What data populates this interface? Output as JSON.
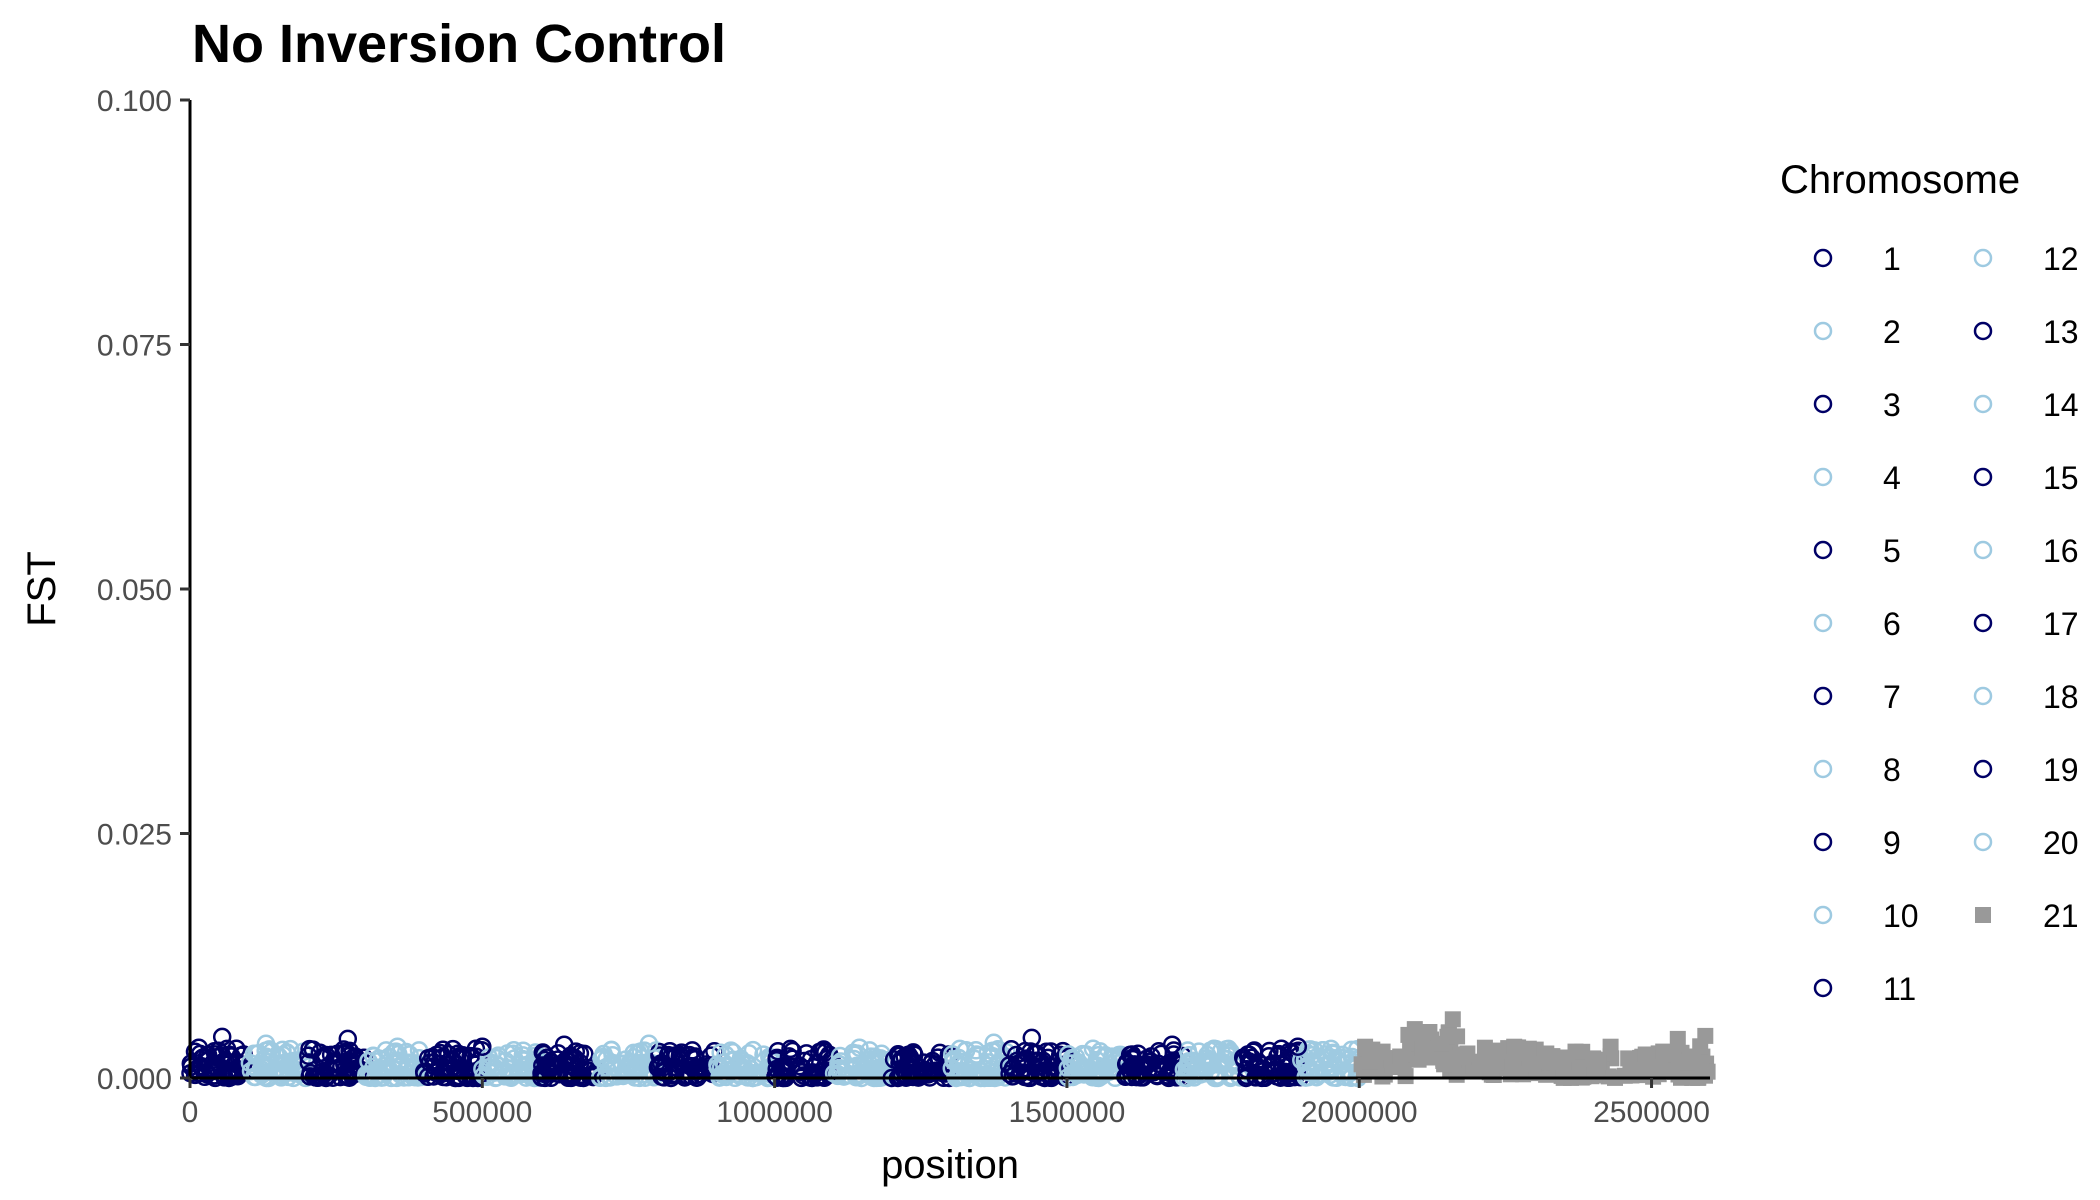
{
  "chart_data": {
    "type": "scatter",
    "title": "No Inversion Control",
    "xlabel": "position",
    "ylabel": "FST",
    "xlim": [
      0,
      2600000
    ],
    "ylim": [
      0,
      0.1
    ],
    "x_ticks": [
      0,
      500000,
      1000000,
      1500000,
      2000000,
      2500000
    ],
    "x_tick_labels": [
      "0",
      "500000",
      "1000000",
      "1500000",
      "2000000",
      "2500000"
    ],
    "y_ticks": [
      0,
      0.025,
      0.05,
      0.075,
      0.1
    ],
    "y_tick_labels": [
      "0.000",
      "0.025",
      "0.050",
      "0.075",
      "0.100"
    ],
    "grid": false,
    "legend": {
      "title": "Chromosome",
      "placement": "right",
      "columns": 2
    },
    "colors": {
      "dark": "#000066",
      "light": "#9ecae1",
      "gray": "#999999"
    },
    "series": [
      {
        "name": "1",
        "shape": "circle",
        "color": "#000066",
        "x_range": [
          0,
          100000
        ]
      },
      {
        "name": "2",
        "shape": "circle",
        "color": "#9ecae1",
        "x_range": [
          100000,
          200000
        ]
      },
      {
        "name": "3",
        "shape": "circle",
        "color": "#000066",
        "x_range": [
          200000,
          300000
        ]
      },
      {
        "name": "4",
        "shape": "circle",
        "color": "#9ecae1",
        "x_range": [
          300000,
          400000
        ]
      },
      {
        "name": "5",
        "shape": "circle",
        "color": "#000066",
        "x_range": [
          400000,
          500000
        ]
      },
      {
        "name": "6",
        "shape": "circle",
        "color": "#9ecae1",
        "x_range": [
          500000,
          600000
        ]
      },
      {
        "name": "7",
        "shape": "circle",
        "color": "#000066",
        "x_range": [
          600000,
          700000
        ]
      },
      {
        "name": "8",
        "shape": "circle",
        "color": "#9ecae1",
        "x_range": [
          700000,
          800000
        ]
      },
      {
        "name": "9",
        "shape": "circle",
        "color": "#000066",
        "x_range": [
          800000,
          900000
        ]
      },
      {
        "name": "10",
        "shape": "circle",
        "color": "#9ecae1",
        "x_range": [
          900000,
          1000000
        ]
      },
      {
        "name": "11",
        "shape": "circle",
        "color": "#000066",
        "x_range": [
          1000000,
          1100000
        ]
      },
      {
        "name": "12",
        "shape": "circle",
        "color": "#9ecae1",
        "x_range": [
          1100000,
          1200000
        ]
      },
      {
        "name": "13",
        "shape": "circle",
        "color": "#000066",
        "x_range": [
          1200000,
          1300000
        ]
      },
      {
        "name": "14",
        "shape": "circle",
        "color": "#9ecae1",
        "x_range": [
          1300000,
          1400000
        ]
      },
      {
        "name": "15",
        "shape": "circle",
        "color": "#000066",
        "x_range": [
          1400000,
          1500000
        ]
      },
      {
        "name": "16",
        "shape": "circle",
        "color": "#9ecae1",
        "x_range": [
          1500000,
          1600000
        ]
      },
      {
        "name": "17",
        "shape": "circle",
        "color": "#000066",
        "x_range": [
          1600000,
          1700000
        ]
      },
      {
        "name": "18",
        "shape": "circle",
        "color": "#9ecae1",
        "x_range": [
          1700000,
          1800000
        ]
      },
      {
        "name": "19",
        "shape": "circle",
        "color": "#000066",
        "x_range": [
          1800000,
          1900000
        ]
      },
      {
        "name": "20",
        "shape": "circle",
        "color": "#9ecae1",
        "x_range": [
          1900000,
          2000000
        ]
      },
      {
        "name": "21",
        "shape": "square",
        "color": "#999999",
        "x_range": [
          2000000,
          2600000
        ]
      }
    ],
    "points_per_series": 60,
    "typical_fst_range": [
      0,
      0.003
    ],
    "peak_points": [
      {
        "series": "1",
        "x": 55000,
        "y": 0.0042
      },
      {
        "series": "1",
        "x": 15000,
        "y": 0.0031
      },
      {
        "series": "2",
        "x": 130000,
        "y": 0.0035
      },
      {
        "series": "3",
        "x": 270000,
        "y": 0.004
      },
      {
        "series": "4",
        "x": 355000,
        "y": 0.0032
      },
      {
        "series": "5",
        "x": 500000,
        "y": 0.0032
      },
      {
        "series": "7",
        "x": 640000,
        "y": 0.0034
      },
      {
        "series": "8",
        "x": 785000,
        "y": 0.0035
      },
      {
        "series": "12",
        "x": 1145000,
        "y": 0.0031
      },
      {
        "series": "14",
        "x": 1375000,
        "y": 0.0036
      },
      {
        "series": "15",
        "x": 1440000,
        "y": 0.0041
      },
      {
        "series": "17",
        "x": 1680000,
        "y": 0.0034
      },
      {
        "series": "19",
        "x": 1895000,
        "y": 0.0032
      }
    ],
    "series_21_profile": [
      {
        "x": 2010000,
        "y": 0.0032
      },
      {
        "x": 2040000,
        "y": 0.0027
      },
      {
        "x": 2070000,
        "y": 0.0022
      },
      {
        "x": 2095000,
        "y": 0.005
      },
      {
        "x": 2120000,
        "y": 0.0047
      },
      {
        "x": 2140000,
        "y": 0.0035
      },
      {
        "x": 2160000,
        "y": 0.006
      },
      {
        "x": 2185000,
        "y": 0.0025
      },
      {
        "x": 2215000,
        "y": 0.0031
      },
      {
        "x": 2240000,
        "y": 0.0028
      },
      {
        "x": 2265000,
        "y": 0.0032
      },
      {
        "x": 2290000,
        "y": 0.003
      },
      {
        "x": 2320000,
        "y": 0.0025
      },
      {
        "x": 2345000,
        "y": 0.0021
      },
      {
        "x": 2370000,
        "y": 0.0027
      },
      {
        "x": 2400000,
        "y": 0.002
      },
      {
        "x": 2430000,
        "y": 0.0032
      },
      {
        "x": 2460000,
        "y": 0.002
      },
      {
        "x": 2490000,
        "y": 0.0024
      },
      {
        "x": 2520000,
        "y": 0.0027
      },
      {
        "x": 2545000,
        "y": 0.004
      },
      {
        "x": 2570000,
        "y": 0.0022
      },
      {
        "x": 2592000,
        "y": 0.0043
      }
    ]
  }
}
